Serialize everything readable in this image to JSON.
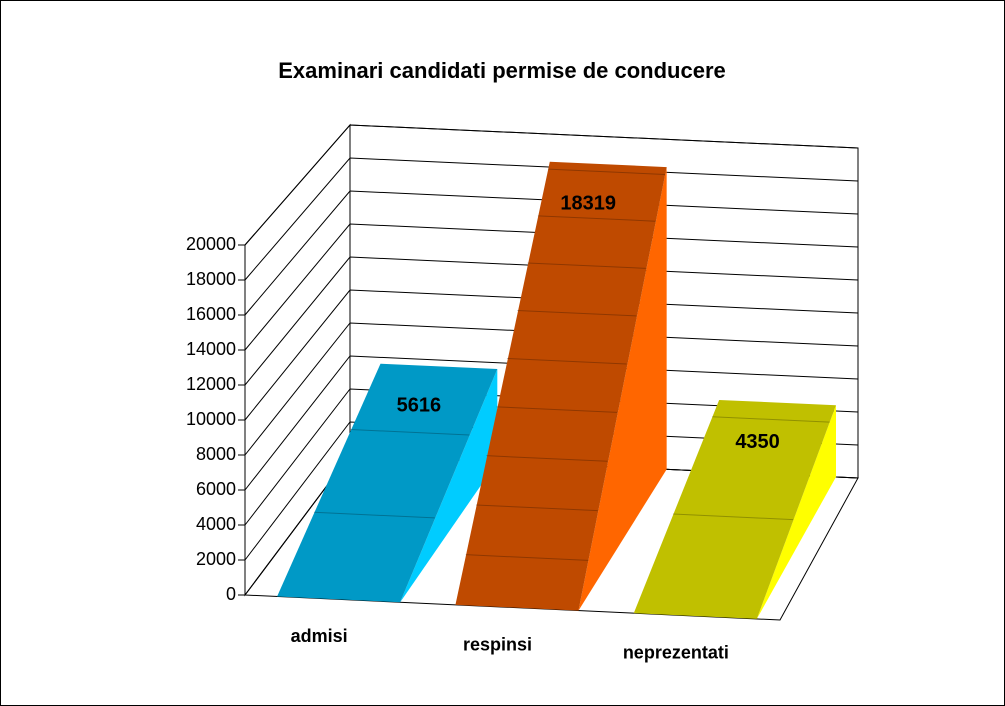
{
  "chart_data": {
    "type": "bar3d",
    "title": "Examinari candidati permise de conducere",
    "categories": [
      "admisi",
      "respinsi",
      "neprezentati"
    ],
    "values": [
      5616,
      18319,
      4350
    ],
    "colors": [
      "#0099c6",
      "#bf4a00",
      "#c0c000"
    ],
    "side_colors": [
      "#00ccff",
      "#ff6600",
      "#ffff00"
    ],
    "ylim": [
      0,
      20000
    ],
    "yticks": [
      0,
      2000,
      4000,
      6000,
      8000,
      10000,
      12000,
      14000,
      16000,
      18000,
      20000
    ],
    "grid": true
  }
}
